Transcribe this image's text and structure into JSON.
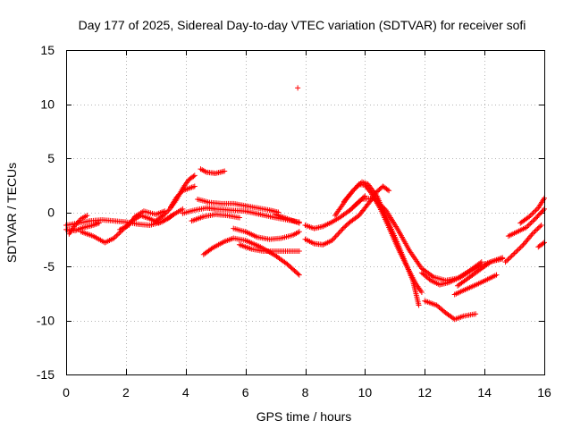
{
  "chart_data": {
    "type": "scatter",
    "title": "Day 177 of 2025, Sidereal Day-to-day VTEC variation (SDTVAR) for receiver sofi",
    "xlabel": "GPS time / hours",
    "ylabel": "SDTVAR / TECUs",
    "xlim": [
      0,
      16
    ],
    "ylim": [
      -15,
      15
    ],
    "x_ticks": [
      0,
      2,
      4,
      6,
      8,
      10,
      12,
      14,
      16
    ],
    "y_ticks": [
      -15,
      -10,
      -5,
      0,
      5,
      10,
      15
    ],
    "grid": true,
    "marker": "+",
    "series_color": "#ff0000",
    "tracks": [
      {
        "name": "t01",
        "points": [
          [
            0.0,
            -1.2
          ],
          [
            0.4,
            -1.0
          ],
          [
            0.8,
            -0.8
          ],
          [
            1.2,
            -0.7
          ],
          [
            1.6,
            -0.8
          ],
          [
            2.0,
            -0.9
          ],
          [
            2.4,
            -1.1
          ],
          [
            2.8,
            -1.2
          ],
          [
            3.2,
            -0.9
          ],
          [
            3.6,
            -0.2
          ],
          [
            3.9,
            0.3
          ]
        ]
      },
      {
        "name": "t02",
        "points": [
          [
            0.0,
            -1.6
          ],
          [
            0.3,
            -1.7
          ],
          [
            0.6,
            -1.4
          ],
          [
            0.9,
            -1.2
          ],
          [
            1.1,
            -1.0
          ]
        ]
      },
      {
        "name": "t03",
        "points": [
          [
            0.1,
            -2.0
          ],
          [
            0.3,
            -1.2
          ],
          [
            0.5,
            -0.6
          ],
          [
            0.7,
            -0.3
          ]
        ]
      },
      {
        "name": "t04",
        "points": [
          [
            0.5,
            -1.8
          ],
          [
            0.9,
            -2.2
          ],
          [
            1.3,
            -2.8
          ],
          [
            1.6,
            -2.4
          ],
          [
            1.9,
            -1.6
          ],
          [
            2.2,
            -0.8
          ],
          [
            2.5,
            -0.3
          ],
          [
            2.8,
            -0.6
          ],
          [
            3.1,
            -1.0
          ],
          [
            3.4,
            -0.6
          ],
          [
            3.6,
            -0.2
          ]
        ]
      },
      {
        "name": "t05",
        "points": [
          [
            1.8,
            -1.6
          ],
          [
            2.1,
            -1.2
          ],
          [
            2.3,
            -0.4
          ],
          [
            2.6,
            0.1
          ],
          [
            3.0,
            -0.2
          ],
          [
            3.3,
            0.1
          ]
        ]
      },
      {
        "name": "t06",
        "points": [
          [
            3.0,
            -0.8
          ],
          [
            3.3,
            -0.2
          ],
          [
            3.5,
            0.4
          ],
          [
            3.7,
            1.2
          ],
          [
            3.9,
            2.2
          ],
          [
            4.1,
            3.0
          ],
          [
            4.3,
            3.4
          ]
        ]
      },
      {
        "name": "t07",
        "points": [
          [
            3.5,
            0.5
          ],
          [
            3.7,
            1.4
          ],
          [
            3.9,
            2.0
          ],
          [
            4.1,
            2.2
          ],
          [
            4.3,
            2.4
          ]
        ]
      },
      {
        "name": "t08",
        "points": [
          [
            4.5,
            4.0
          ],
          [
            4.7,
            3.7
          ],
          [
            5.0,
            3.6
          ],
          [
            5.3,
            3.8
          ]
        ]
      },
      {
        "name": "t09",
        "points": [
          [
            4.4,
            1.2
          ],
          [
            4.8,
            0.9
          ],
          [
            5.2,
            0.8
          ],
          [
            5.6,
            0.8
          ],
          [
            6.0,
            0.6
          ],
          [
            6.4,
            0.4
          ],
          [
            6.8,
            0.2
          ],
          [
            7.1,
            0.0
          ]
        ]
      },
      {
        "name": "t10",
        "points": [
          [
            3.9,
            -0.1
          ],
          [
            4.3,
            0.2
          ],
          [
            4.7,
            0.4
          ],
          [
            5.0,
            0.3
          ],
          [
            5.5,
            0.2
          ],
          [
            6.0,
            0.1
          ],
          [
            6.5,
            -0.2
          ],
          [
            7.0,
            -0.5
          ],
          [
            7.4,
            -0.7
          ],
          [
            7.8,
            -0.9
          ]
        ]
      },
      {
        "name": "t11",
        "points": [
          [
            4.2,
            -0.8
          ],
          [
            4.6,
            -0.4
          ],
          [
            5.0,
            -0.2
          ],
          [
            5.4,
            -0.3
          ],
          [
            5.8,
            -0.5
          ]
        ]
      },
      {
        "name": "t12",
        "points": [
          [
            4.6,
            -3.9
          ],
          [
            4.9,
            -3.3
          ],
          [
            5.3,
            -2.7
          ],
          [
            5.6,
            -2.4
          ],
          [
            6.0,
            -2.6
          ],
          [
            6.5,
            -3.2
          ],
          [
            7.0,
            -4.0
          ],
          [
            7.4,
            -4.8
          ],
          [
            7.8,
            -5.8
          ]
        ]
      },
      {
        "name": "t13",
        "points": [
          [
            5.6,
            -1.5
          ],
          [
            6.0,
            -1.8
          ],
          [
            6.4,
            -2.3
          ],
          [
            6.8,
            -2.5
          ],
          [
            7.2,
            -2.4
          ],
          [
            7.6,
            -2.1
          ],
          [
            7.8,
            -1.8
          ]
        ]
      },
      {
        "name": "t14",
        "points": [
          [
            5.8,
            -3.0
          ],
          [
            6.2,
            -3.4
          ],
          [
            6.6,
            -3.6
          ],
          [
            7.0,
            -3.6
          ],
          [
            7.4,
            -3.6
          ],
          [
            7.8,
            -3.6
          ]
        ]
      },
      {
        "name": "t15",
        "points": [
          [
            7.0,
            -0.2
          ],
          [
            7.3,
            -0.5
          ],
          [
            7.6,
            -0.8
          ],
          [
            7.8,
            -1.0
          ]
        ]
      },
      {
        "name": "t16",
        "points": [
          [
            8.0,
            -1.2
          ],
          [
            8.3,
            -1.5
          ],
          [
            8.6,
            -1.3
          ],
          [
            8.9,
            -0.9
          ],
          [
            9.2,
            -0.4
          ],
          [
            9.5,
            0.2
          ],
          [
            9.8,
            1.0
          ],
          [
            10.0,
            1.5
          ]
        ]
      },
      {
        "name": "t17",
        "points": [
          [
            8.0,
            -2.5
          ],
          [
            8.3,
            -2.9
          ],
          [
            8.6,
            -3.0
          ],
          [
            8.9,
            -2.6
          ],
          [
            9.1,
            -2.0
          ],
          [
            9.3,
            -1.4
          ],
          [
            9.5,
            -0.9
          ],
          [
            9.8,
            -0.3
          ],
          [
            10.0,
            0.4
          ],
          [
            10.2,
            1.1
          ],
          [
            10.4,
            1.9
          ],
          [
            10.6,
            2.4
          ],
          [
            10.8,
            2.0
          ]
        ]
      },
      {
        "name": "t18",
        "points": [
          [
            9.0,
            -0.3
          ],
          [
            9.2,
            0.5
          ],
          [
            9.4,
            1.3
          ],
          [
            9.6,
            2.0
          ],
          [
            9.8,
            2.6
          ],
          [
            10.0,
            2.5
          ],
          [
            10.2,
            1.8
          ],
          [
            10.5,
            0.4
          ],
          [
            10.8,
            -1.4
          ],
          [
            11.1,
            -3.3
          ],
          [
            11.4,
            -5.0
          ],
          [
            11.7,
            -6.6
          ],
          [
            11.9,
            -7.4
          ]
        ]
      },
      {
        "name": "t19",
        "points": [
          [
            9.3,
            1.0
          ],
          [
            9.6,
            2.0
          ],
          [
            9.9,
            2.8
          ],
          [
            10.1,
            2.6
          ],
          [
            10.4,
            1.5
          ],
          [
            10.7,
            -0.4
          ],
          [
            11.0,
            -2.3
          ],
          [
            11.3,
            -4.3
          ],
          [
            11.6,
            -6.3
          ],
          [
            11.8,
            -8.6
          ]
        ]
      },
      {
        "name": "t20",
        "points": [
          [
            9.5,
            0.2
          ],
          [
            9.9,
            1.2
          ],
          [
            10.3,
            1.3
          ],
          [
            10.7,
            0.2
          ],
          [
            11.1,
            -1.6
          ],
          [
            11.5,
            -3.6
          ],
          [
            11.9,
            -5.2
          ],
          [
            12.3,
            -6.0
          ],
          [
            12.7,
            -6.3
          ],
          [
            13.1,
            -6.1
          ],
          [
            13.5,
            -5.4
          ],
          [
            13.9,
            -4.6
          ]
        ]
      },
      {
        "name": "t21",
        "points": [
          [
            11.9,
            -5.6
          ],
          [
            12.2,
            -6.3
          ],
          [
            12.5,
            -6.7
          ],
          [
            12.8,
            -6.5
          ],
          [
            13.2,
            -6.0
          ],
          [
            13.6,
            -5.3
          ],
          [
            13.9,
            -4.9
          ]
        ]
      },
      {
        "name": "t22",
        "points": [
          [
            12.0,
            -8.2
          ],
          [
            12.4,
            -8.6
          ],
          [
            12.7,
            -9.3
          ],
          [
            13.0,
            -9.9
          ],
          [
            13.3,
            -9.6
          ],
          [
            13.7,
            -9.4
          ]
        ]
      },
      {
        "name": "t23",
        "points": [
          [
            13.0,
            -7.6
          ],
          [
            13.4,
            -7.1
          ],
          [
            13.8,
            -6.6
          ],
          [
            14.1,
            -6.2
          ],
          [
            14.4,
            -5.8
          ]
        ]
      },
      {
        "name": "t24",
        "points": [
          [
            13.1,
            -6.8
          ],
          [
            13.5,
            -6.0
          ],
          [
            13.9,
            -5.2
          ],
          [
            14.2,
            -4.6
          ],
          [
            14.6,
            -4.2
          ]
        ]
      },
      {
        "name": "t25",
        "points": [
          [
            14.0,
            -4.8
          ],
          [
            14.3,
            -4.5
          ],
          [
            14.6,
            -4.3
          ]
        ]
      },
      {
        "name": "t26",
        "points": [
          [
            14.7,
            -4.6
          ],
          [
            15.0,
            -3.8
          ],
          [
            15.3,
            -3.0
          ],
          [
            15.6,
            -2.0
          ],
          [
            15.9,
            -1.2
          ]
        ]
      },
      {
        "name": "t27",
        "points": [
          [
            14.8,
            -2.2
          ],
          [
            15.1,
            -1.8
          ],
          [
            15.4,
            -1.4
          ],
          [
            15.7,
            -0.6
          ],
          [
            16.0,
            0.3
          ]
        ]
      },
      {
        "name": "t28",
        "points": [
          [
            15.2,
            -1.0
          ],
          [
            15.5,
            -0.4
          ],
          [
            15.8,
            0.4
          ],
          [
            16.0,
            1.3
          ]
        ]
      },
      {
        "name": "t29",
        "points": [
          [
            15.8,
            -3.2
          ],
          [
            16.0,
            -2.8
          ]
        ]
      },
      {
        "name": "outlier",
        "points": [
          [
            7.75,
            11.5
          ]
        ]
      }
    ]
  }
}
